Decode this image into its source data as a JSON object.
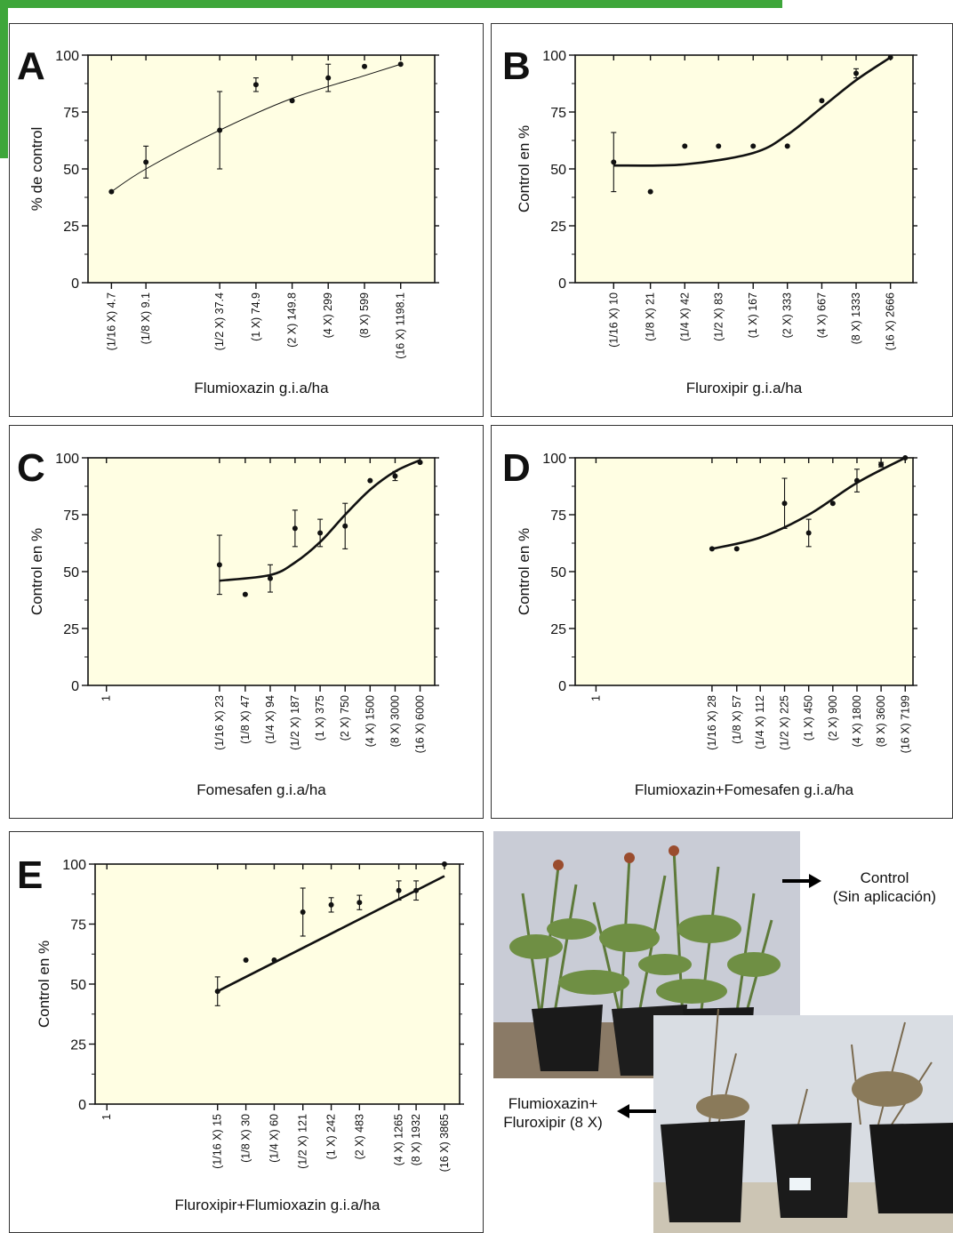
{
  "colors": {
    "plot_bg": "#fffee3",
    "deco_green": "#3ea63a",
    "ink": "#111111"
  },
  "chart_data": [
    {
      "panel": "A",
      "type": "scatter",
      "xscale": "log",
      "xlabel": "Flumioxazin g.i.a/ha",
      "ylabel": "% de control",
      "ylim": [
        0,
        100
      ],
      "yticks": [
        0,
        25,
        50,
        75,
        100
      ],
      "tick_labels": [
        "(1/16 X) 4.7",
        "(1/8 X) 9.1",
        "(1/2 X) 37.4",
        "(1 X) 74.9",
        "(2 X) 149.8",
        "(4 X) 299",
        "(8 X) 599",
        "(16 X) 1198.1"
      ],
      "x": [
        4.7,
        9.1,
        37.4,
        74.9,
        149.8,
        299,
        599,
        1198.1
      ],
      "y": [
        40,
        53,
        67,
        87,
        80,
        90,
        95,
        96
      ],
      "err": [
        0,
        7,
        17,
        3,
        0,
        6,
        0,
        0
      ],
      "curve": {
        "x": [
          4.7,
          9.1,
          37.4,
          149.8,
          599,
          1198.1
        ],
        "y": [
          40,
          50,
          67,
          81,
          91,
          96
        ]
      },
      "curve_style": "thin"
    },
    {
      "panel": "B",
      "type": "scatter",
      "xscale": "log",
      "xlabel": "Fluroxipir g.i.a/ha",
      "ylabel": "Control en %",
      "ylim": [
        0,
        100
      ],
      "yticks": [
        0,
        25,
        50,
        75,
        100
      ],
      "tick_labels": [
        "(1/16 X) 10",
        "(1/8 X) 21",
        "(1/4 X) 42",
        "(1/2 X) 83",
        "(1 X) 167",
        "(2 X) 333",
        "(4 X) 667",
        "(8 X) 1333",
        "(16 X) 2666"
      ],
      "x": [
        10,
        21,
        42,
        83,
        167,
        333,
        667,
        1333,
        2666
      ],
      "y": [
        53,
        40,
        60,
        60,
        60,
        60,
        80,
        92,
        99
      ],
      "err": [
        13,
        0,
        0,
        0,
        0,
        0,
        0,
        2,
        0
      ],
      "curve": {
        "x": [
          10,
          42,
          167,
          333,
          667,
          1333,
          2666
        ],
        "y": [
          51.5,
          52,
          57,
          65,
          77,
          89,
          99
        ]
      },
      "curve_style": "thick"
    },
    {
      "panel": "C",
      "type": "scatter",
      "xscale": "log",
      "xlabel": "Fomesafen g.i.a/ha",
      "ylabel": "Control en %",
      "ylim": [
        0,
        100
      ],
      "yticks": [
        0,
        25,
        50,
        75,
        100
      ],
      "tick_labels": [
        "1",
        "(1/16 X) 23",
        "(1/8 X) 47",
        "(1/4 X) 94",
        "(1/2 X) 187",
        "(1 X) 375",
        "(2 X) 750",
        "(4 X) 1500",
        "(8 X) 3000",
        "(16 X) 6000"
      ],
      "x": [
        23,
        47,
        94,
        187,
        375,
        750,
        1500,
        3000,
        6000
      ],
      "y": [
        53,
        40,
        47,
        69,
        67,
        70,
        90,
        92,
        98
      ],
      "err": [
        13,
        0,
        6,
        8,
        6,
        10,
        0,
        2,
        0
      ],
      "curve": {
        "x": [
          23,
          94,
          187,
          375,
          750,
          1500,
          3000,
          6000
        ],
        "y": [
          46,
          48.5,
          54,
          63,
          75,
          86,
          94,
          99
        ]
      },
      "curve_style": "thick"
    },
    {
      "panel": "D",
      "type": "scatter",
      "xscale": "log",
      "xlabel": "Flumioxazin+Fomesafen g.i.a/ha",
      "ylabel": "Control en %",
      "ylim": [
        0,
        100
      ],
      "yticks": [
        0,
        25,
        50,
        75,
        100
      ],
      "tick_labels": [
        "1",
        "(1/16 X) 28",
        "(1/8 X) 57",
        "(1/4 X) 112",
        "(1/2 X) 225",
        "(1 X) 450",
        "(2 X) 900",
        "(4 X) 1800",
        "(8 X) 3600",
        "(16 X) 7199"
      ],
      "x": [
        28,
        57,
        225,
        450,
        900,
        1800,
        3600,
        7199
      ],
      "y": [
        60,
        60,
        80,
        67,
        80,
        90,
        97,
        100
      ],
      "err": [
        0,
        0,
        11,
        6,
        0,
        5,
        1,
        0
      ],
      "curve": {
        "x": [
          28,
          112,
          450,
          1800,
          7199
        ],
        "y": [
          60,
          65,
          75,
          89,
          100
        ]
      },
      "curve_style": "thick"
    },
    {
      "panel": "E",
      "type": "scatter",
      "xscale": "log",
      "xlabel": "Fluroxipir+Flumioxazin g.i.a/ha",
      "ylabel": "Control en %",
      "ylim": [
        0,
        100
      ],
      "yticks": [
        0,
        25,
        50,
        75,
        100
      ],
      "tick_labels": [
        "1",
        "(1/16 X) 15",
        "(1/8 X) 30",
        "(1/4 X) 60",
        "(1/2 X) 121",
        "(1 X) 242",
        "(2 X) 483",
        "(4 X) 1265",
        "(8 X) 1932",
        "(16 X) 3865"
      ],
      "x": [
        15,
        30,
        60,
        121,
        242,
        483,
        1265,
        1932,
        3865
      ],
      "y": [
        47,
        60,
        60,
        80,
        83,
        84,
        89,
        89,
        100
      ],
      "err": [
        6,
        0,
        0,
        10,
        3,
        3,
        4,
        4,
        0
      ],
      "curve": {
        "x": [
          15,
          3865
        ],
        "y": [
          47,
          95
        ]
      },
      "curve_style": "thick"
    }
  ],
  "photo": {
    "label_top_line1": "Control",
    "label_top_line2": "(Sin aplicación)",
    "label_bottom_line1": "Flumioxazin+",
    "label_bottom_line2": "Fluroxipir (8 X)"
  }
}
